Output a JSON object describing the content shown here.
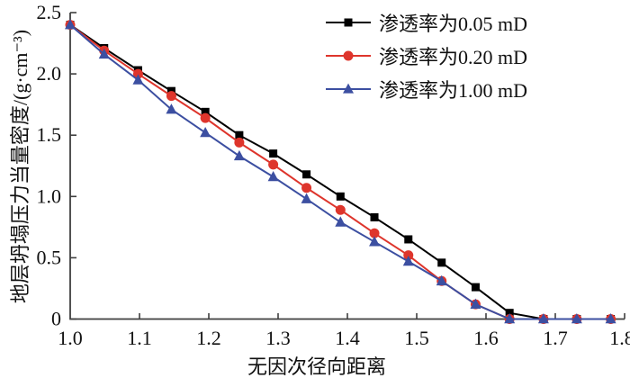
{
  "figure": {
    "background": "#ffffff",
    "axis_color": "#3f3f3f",
    "text_color": "#111111"
  },
  "chart_data": {
    "type": "line",
    "title": "",
    "xlabel": "无因次径向距离",
    "ylabel": "地层坍塌压力当量密度/(g·cm⁻³)",
    "xlim": [
      1.0,
      1.8
    ],
    "ylim": [
      0,
      2.5
    ],
    "x_ticks": [
      "1.0",
      "1.1",
      "1.2",
      "1.3",
      "1.4",
      "1.5",
      "1.6",
      "1.7",
      "1.8"
    ],
    "y_ticks": [
      "0",
      "0.5",
      "1.0",
      "1.5",
      "2.0",
      "2.5"
    ],
    "grid": false,
    "legend_position": "top-right",
    "x": [
      1.0,
      1.049,
      1.098,
      1.146,
      1.195,
      1.244,
      1.293,
      1.341,
      1.39,
      1.439,
      1.488,
      1.536,
      1.585,
      1.634,
      1.683,
      1.731,
      1.78
    ],
    "series": [
      {
        "name": "渗透率为0.05 mD",
        "color": "#000000",
        "marker": "square",
        "values": [
          2.4,
          2.21,
          2.03,
          1.86,
          1.69,
          1.5,
          1.35,
          1.18,
          1.0,
          0.83,
          0.65,
          0.46,
          0.26,
          0.05,
          0.0,
          0.0,
          0.0
        ]
      },
      {
        "name": "渗透率为0.20 mD",
        "color": "#de352c",
        "marker": "circle",
        "values": [
          2.4,
          2.19,
          2.0,
          1.82,
          1.64,
          1.44,
          1.26,
          1.07,
          0.89,
          0.7,
          0.52,
          0.31,
          0.12,
          0.0,
          0.0,
          0.0,
          0.0
        ]
      },
      {
        "name": "渗透率为1.00 mD",
        "color": "#3c4fa1",
        "marker": "triangle",
        "values": [
          2.4,
          2.16,
          1.95,
          1.71,
          1.52,
          1.33,
          1.16,
          0.98,
          0.79,
          0.63,
          0.47,
          0.31,
          0.12,
          0.0,
          0.0,
          0.0,
          0.0
        ]
      }
    ]
  }
}
